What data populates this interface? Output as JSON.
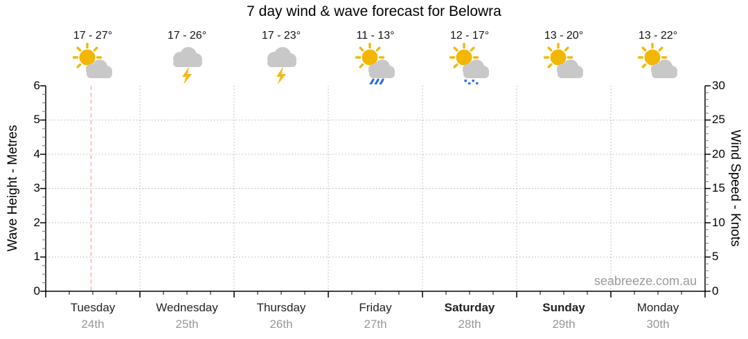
{
  "title": "7 day wind & wave forecast for Belowra",
  "watermark": "seabreeze.com.au",
  "axes": {
    "wave": {
      "label": "Wave Height - Metres",
      "ticks": [
        "0",
        "1",
        "2",
        "3",
        "4",
        "5",
        "6"
      ]
    },
    "wind": {
      "label": "Wind Speed - Knots",
      "ticks": [
        "0",
        "5",
        "10",
        "15",
        "20",
        "25",
        "30"
      ]
    }
  },
  "colors": {
    "sun": "#f2b705",
    "cloud": "#c8c8c8",
    "lightning": "#f5b915",
    "rain": "#2e6ddd",
    "grid": "#b3b3b3",
    "current_time_marker": "#f5b2ab"
  },
  "days": [
    {
      "name": "Tuesday",
      "date": "24th",
      "temp": "17 - 27°",
      "icon": "sun-cloud-icon",
      "weekend": false
    },
    {
      "name": "Wednesday",
      "date": "25th",
      "temp": "17 - 26°",
      "icon": "thunderstorm-icon",
      "weekend": false
    },
    {
      "name": "Thursday",
      "date": "26th",
      "temp": "17 - 23°",
      "icon": "thunderstorm-icon",
      "weekend": false
    },
    {
      "name": "Friday",
      "date": "27th",
      "temp": "11 - 13°",
      "icon": "sun-cloud-rain-icon",
      "weekend": false
    },
    {
      "name": "Saturday",
      "date": "28th",
      "temp": "12 - 17°",
      "icon": "sun-cloud-drizzle-icon",
      "weekend": true
    },
    {
      "name": "Sunday",
      "date": "29th",
      "temp": "13 - 20°",
      "icon": "sun-cloud-icon",
      "weekend": true
    },
    {
      "name": "Monday",
      "date": "30th",
      "temp": "13 - 22°",
      "icon": "sun-cloud-icon",
      "weekend": false
    }
  ],
  "chart_data": {
    "type": "line",
    "title": "7 day wind & wave forecast for Belowra",
    "x_categories": [
      "Tuesday 24th",
      "Wednesday 25th",
      "Thursday 26th",
      "Friday 27th",
      "Saturday 28th",
      "Sunday 29th",
      "Monday 30th"
    ],
    "y_left": {
      "label": "Wave Height - Metres",
      "range": [
        0,
        6
      ],
      "ticks": [
        0,
        1,
        2,
        3,
        4,
        5,
        6
      ]
    },
    "y_right": {
      "label": "Wind Speed - Knots",
      "range": [
        0,
        30
      ],
      "ticks": [
        0,
        5,
        10,
        15,
        20,
        25,
        30
      ]
    },
    "grid": true,
    "series": [],
    "annotations": {
      "temperature_ranges_c": [
        [
          17,
          27
        ],
        [
          17,
          26
        ],
        [
          17,
          23
        ],
        [
          11,
          13
        ],
        [
          12,
          17
        ],
        [
          13,
          20
        ],
        [
          13,
          22
        ]
      ],
      "conditions": [
        "partly-cloudy",
        "thunderstorm",
        "thunderstorm",
        "rain-showers",
        "drizzle-showers",
        "partly-cloudy",
        "partly-cloudy"
      ],
      "current_time_marker_day": "Tuesday"
    }
  }
}
